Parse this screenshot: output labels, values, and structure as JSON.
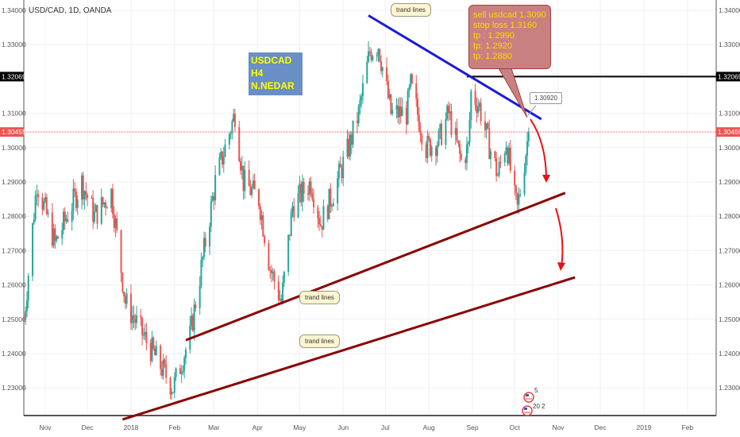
{
  "header": {
    "title": "USD/CAD, 1D, OANDA"
  },
  "annotations": {
    "info_box": [
      "USDCAD",
      "H4",
      "N.NEDAR"
    ],
    "signal": [
      "sell usdcad 1.3090",
      "stop loss 1.3160",
      "tp : 1.2990",
      "tp: 1.2920",
      "tp: 1.2880"
    ],
    "notes": [
      "trand lines",
      "trand lines",
      "trand lines"
    ],
    "price_callout": "1.30920",
    "events": [
      "5",
      "20 2"
    ]
  },
  "colors": {
    "up": "#26a69a",
    "down": "#ef5350",
    "blue_line": "#1a1adc",
    "red_line": "#8b0000",
    "black_line": "#000000",
    "arrow": "#e81010",
    "signal_bg": "#c98080",
    "signal_text": "#ffd700",
    "info_bg": "#6a8fc4",
    "info_text": "#ffff00"
  },
  "chart_data": {
    "type": "candlestick",
    "symbol": "USD/CAD",
    "interval": "1D",
    "source": "OANDA",
    "ylim": [
      1.221,
      1.3432
    ],
    "y_ticks": [
      "1.34000",
      "1.33000",
      "1.31000",
      "1.30000",
      "1.29000",
      "1.28000",
      "1.27000",
      "1.26000",
      "1.25000",
      "1.24000",
      "1.23000"
    ],
    "x_ticks": [
      [
        "Nov",
        "2017-11-01"
      ],
      [
        "Dec",
        "2017-12-01"
      ],
      [
        "2018",
        "2018-01-01"
      ],
      [
        "Feb",
        "2018-02-01"
      ],
      [
        "Mar",
        "2018-03-01"
      ],
      [
        "Apr",
        "2018-04-01"
      ],
      [
        "May",
        "2018-05-01"
      ],
      [
        "Jun",
        "2018-06-01"
      ],
      [
        "Jul",
        "2018-07-01"
      ],
      [
        "Aug",
        "2018-08-01"
      ],
      [
        "Sep",
        "2018-09-01"
      ],
      [
        "Oct",
        "2018-10-01"
      ],
      [
        "Nov",
        "2018-11-01"
      ],
      [
        "Dec",
        "2018-12-01"
      ],
      [
        "2019",
        "2019-01-01"
      ],
      [
        "Feb",
        "2019-02-01"
      ]
    ],
    "price_path": [
      [
        "2017-10-17",
        1.25
      ],
      [
        "2017-10-26",
        1.29
      ],
      [
        "2017-11-08",
        1.272
      ],
      [
        "2017-11-27",
        1.29
      ],
      [
        "2017-12-06",
        1.28
      ],
      [
        "2017-12-18",
        1.287
      ],
      [
        "2017-12-28",
        1.255
      ],
      [
        "2018-01-10",
        1.245
      ],
      [
        "2018-01-31",
        1.23
      ],
      [
        "2018-02-12",
        1.245
      ],
      [
        "2018-02-20",
        1.265
      ],
      [
        "2018-03-02",
        1.29
      ],
      [
        "2018-03-16",
        1.31
      ],
      [
        "2018-03-22",
        1.29
      ],
      [
        "2018-04-02",
        1.285
      ],
      [
        "2018-04-10",
        1.265
      ],
      [
        "2018-04-18",
        1.255
      ],
      [
        "2018-04-26",
        1.283
      ],
      [
        "2018-05-09",
        1.29
      ],
      [
        "2018-05-16",
        1.278
      ],
      [
        "2018-05-25",
        1.287
      ],
      [
        "2018-06-05",
        1.3
      ],
      [
        "2018-06-12",
        1.31
      ],
      [
        "2018-06-20",
        1.328
      ],
      [
        "2018-06-26",
        1.33
      ],
      [
        "2018-07-05",
        1.31
      ],
      [
        "2018-07-16",
        1.31
      ],
      [
        "2018-07-19",
        1.318
      ],
      [
        "2018-07-30",
        1.3
      ],
      [
        "2018-08-08",
        1.302
      ],
      [
        "2018-08-15",
        1.31
      ],
      [
        "2018-08-24",
        1.296
      ],
      [
        "2018-08-29",
        1.3
      ],
      [
        "2018-08-31",
        1.316
      ],
      [
        "2018-09-06",
        1.312
      ],
      [
        "2018-09-12",
        1.302
      ],
      [
        "2018-09-19",
        1.292
      ],
      [
        "2018-09-25",
        1.302
      ],
      [
        "2018-10-01",
        1.285
      ],
      [
        "2018-10-03",
        1.282
      ],
      [
        "2018-10-08",
        1.296
      ],
      [
        "2018-10-11",
        1.3046
      ]
    ],
    "last_price": "1.30455",
    "horizontal_level": "1.32069",
    "trend_lines": [
      {
        "color": "blue",
        "from": [
          "2018-06-19",
          1.3385
        ],
        "to": [
          "2018-10-20",
          1.3083
        ]
      },
      {
        "color": "darkred",
        "from": [
          "2018-02-09",
          1.2439
        ],
        "to": [
          "2018-11-06",
          1.2868
        ]
      },
      {
        "color": "darkred",
        "from": [
          "2017-12-26",
          1.2208
        ],
        "to": [
          "2018-11-13",
          1.2622
        ]
      }
    ],
    "level_line": {
      "from": "2018-08-28",
      "price": 1.32069
    }
  }
}
